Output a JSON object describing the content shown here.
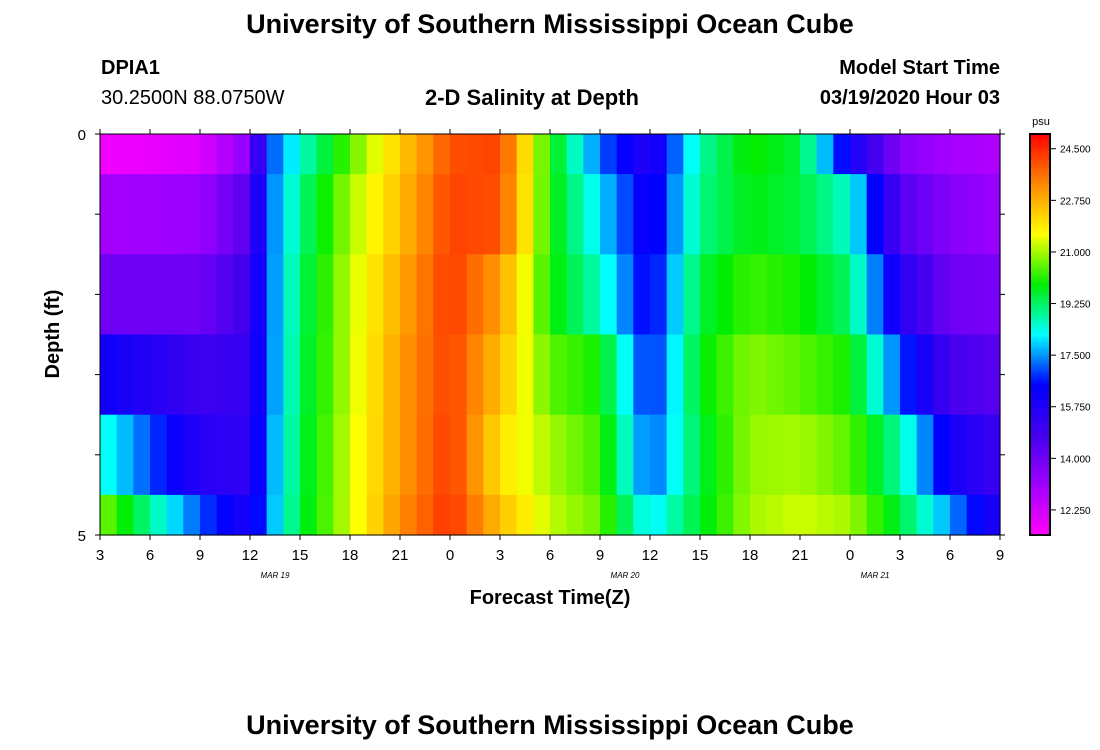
{
  "page": {
    "title": "University of Southern Mississippi Ocean Cube",
    "footer_title": "University of Southern Mississippi Ocean Cube",
    "station_id": "DPIA1",
    "station_coords": "30.2500N 88.0750W",
    "model_start_label": "Model Start Time",
    "model_start_value": "03/19/2020 Hour 03"
  },
  "chart_data": {
    "type": "heatmap",
    "title": "2-D Salinity at Depth",
    "xlabel": "Forecast Time(Z)",
    "ylabel": "Depth (ft)",
    "ylim": [
      0,
      5
    ],
    "y_tick_labels": [
      "0",
      "5"
    ],
    "x_tick_labels": [
      "3",
      "6",
      "9",
      "12",
      "15",
      "18",
      "21",
      "0",
      "3",
      "6",
      "9",
      "12",
      "15",
      "18",
      "21",
      "0",
      "3",
      "6",
      "9"
    ],
    "date_labels": [
      {
        "label": "MAR 19",
        "after_tick": 3
      },
      {
        "label": "MAR 20",
        "after_tick": 10
      },
      {
        "label": "MAR 21",
        "after_tick": 15
      }
    ],
    "colorbar": {
      "unit": "psu",
      "ticks": [
        "24.500",
        "22.750",
        "21.000",
        "19.250",
        "17.500",
        "15.750",
        "14.000",
        "12.250"
      ],
      "range": [
        11.4,
        25.0
      ]
    },
    "layer_bounds": [
      0,
      0.5,
      1.5,
      2.5,
      3.5,
      4.5,
      5.0
    ],
    "anchor_hours": [
      3,
      9,
      12,
      13,
      15,
      18,
      21,
      24,
      27,
      30,
      33,
      36,
      39,
      42,
      45,
      48,
      51,
      54,
      57
    ],
    "layers": [
      [
        11.6,
        12.0,
        13.5,
        16.8,
        18.5,
        20.5,
        22.3,
        24.0,
        24.2,
        20.0,
        17.2,
        15.5,
        18.8,
        20.0,
        19.5,
        16.0,
        13.6,
        13.0,
        12.8
      ],
      [
        13.0,
        13.2,
        14.5,
        17.0,
        19.0,
        21.0,
        22.5,
        24.2,
        24.0,
        20.0,
        18.0,
        16.0,
        19.0,
        19.8,
        19.5,
        18.5,
        14.5,
        13.6,
        13.2
      ],
      [
        14.0,
        14.0,
        15.0,
        17.0,
        19.2,
        21.2,
        22.8,
        24.3,
        23.0,
        20.0,
        18.6,
        16.2,
        19.5,
        20.3,
        20.0,
        19.2,
        15.5,
        14.0,
        13.8
      ],
      [
        16.2,
        15.0,
        15.2,
        17.0,
        19.3,
        21.2,
        23.0,
        24.2,
        22.5,
        20.5,
        20.0,
        16.5,
        19.8,
        20.8,
        20.5,
        20.0,
        17.0,
        14.8,
        14.4
      ],
      [
        18.5,
        15.5,
        15.3,
        17.2,
        19.4,
        21.3,
        23.0,
        24.3,
        22.0,
        21.0,
        20.3,
        17.0,
        19.5,
        20.9,
        21.0,
        20.5,
        18.8,
        16.0,
        15.0
      ],
      [
        20.8,
        17.0,
        15.8,
        17.3,
        19.5,
        21.3,
        23.2,
        24.4,
        22.5,
        21.2,
        20.6,
        18.0,
        19.6,
        21.0,
        21.3,
        21.0,
        19.5,
        17.5,
        15.6
      ]
    ]
  }
}
